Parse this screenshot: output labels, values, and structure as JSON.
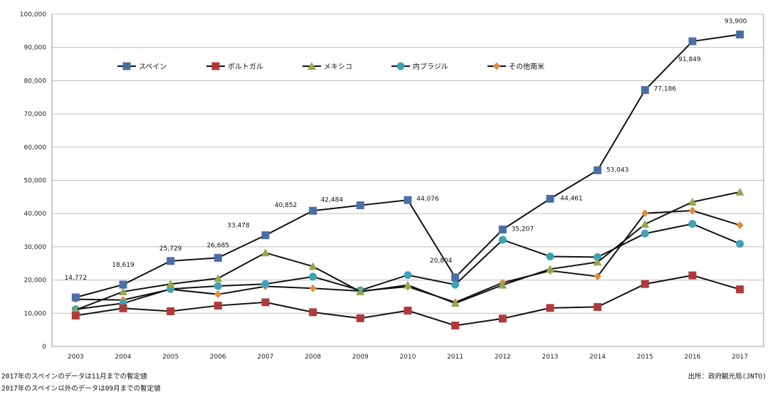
{
  "chart_data": {
    "type": "line",
    "categories": [
      "2003",
      "2004",
      "2005",
      "2006",
      "2007",
      "2008",
      "2009",
      "2010",
      "2011",
      "2012",
      "2013",
      "2014",
      "2015",
      "2016",
      "2017"
    ],
    "ylim": [
      0,
      100000
    ],
    "yticks": [
      "0",
      "10,000",
      "20,000",
      "30,000",
      "40,000",
      "50,000",
      "60,000",
      "70,000",
      "80,000",
      "90,000",
      "100,000"
    ],
    "grid": "horizontal",
    "legend_position": "top-left inside",
    "series": [
      {
        "name": "スペイン",
        "color": "#4a6fa5",
        "marker": "square",
        "values": [
          14772,
          18619,
          25729,
          26685,
          33478,
          40852,
          42484,
          44076,
          20804,
          35207,
          44461,
          53043,
          77186,
          91849,
          93900
        ],
        "labels": [
          "14,772",
          "18,619",
          "25,729",
          "26,685",
          "33,478",
          "40,852",
          "42,484",
          "44,076",
          "20,804",
          "35,207",
          "44,461",
          "53,043",
          "77,186",
          "91,849",
          "93,900"
        ]
      },
      {
        "name": "ポルトガル",
        "color": "#b03a3a",
        "marker": "square",
        "values": [
          9300,
          11500,
          10600,
          12300,
          13300,
          10300,
          8500,
          10800,
          6300,
          8400,
          11600,
          11900,
          18800,
          21400,
          17200
        ]
      },
      {
        "name": "メキシコ",
        "color": "#92a84f",
        "marker": "triangle",
        "values": [
          11000,
          16500,
          18800,
          20500,
          28200,
          24100,
          16500,
          18500,
          13000,
          18500,
          23300,
          25400,
          36800,
          43500,
          46500
        ]
      },
      {
        "name": "内ブラジル",
        "color": "#3fa3b7",
        "marker": "circle",
        "values": [
          11200,
          13000,
          17300,
          18200,
          18800,
          21000,
          16900,
          21500,
          18600,
          32100,
          27100,
          26900,
          34000,
          36900,
          30900
        ]
      },
      {
        "name": "その他南米",
        "color": "#e28a3b",
        "marker": "diamond",
        "values": [
          14200,
          14000,
          17200,
          15700,
          18100,
          17500,
          16700,
          18000,
          13300,
          19200,
          22800,
          21100,
          40100,
          40900,
          36500
        ]
      }
    ]
  },
  "notes": [
    "2017年のスペインのデータは11月までの暫定値",
    "2017年のスペイン以外のデータは09月までの暫定値"
  ],
  "source": "出所：政府観光局(JNTO)"
}
